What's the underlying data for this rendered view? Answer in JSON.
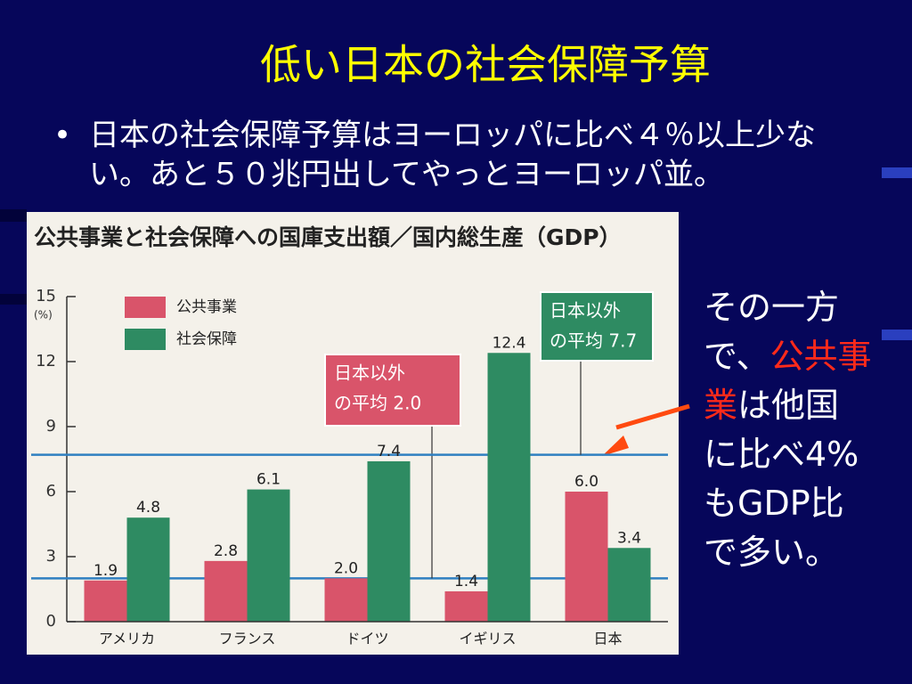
{
  "slide": {
    "title": "低い日本の社会保障予算",
    "bullet": "日本の社会保障予算はヨーロッパに比べ４％以上少ない。あと５０兆円出してやっとヨーロッパ並。",
    "side_note": [
      {
        "text": "その一方で、"
      },
      {
        "text": "公共事業",
        "color": "#ff2a1a"
      },
      {
        "text": "は他国に比べ4%もGDP比で多い。"
      }
    ]
  },
  "chart_data": {
    "type": "bar",
    "title": "公共事業と社会保障への国庫支出額／国内総生産（GDP）",
    "y_unit": "(%)",
    "categories": [
      "アメリカ",
      "フランス",
      "ドイツ",
      "イギリス",
      "日本"
    ],
    "series": [
      {
        "name": "公共事業",
        "color": "#d9546a",
        "values": [
          1.9,
          2.8,
          2.0,
          1.4,
          6.0
        ],
        "value_labels": [
          "1.9",
          "2.8",
          "2.0",
          "1.4",
          "6.0"
        ]
      },
      {
        "name": "社会保障",
        "color": "#2e8b62",
        "values": [
          4.8,
          6.1,
          7.4,
          12.4,
          3.4
        ],
        "value_labels": [
          "4.8",
          "6.1",
          "7.4",
          "12.4",
          "3.4"
        ]
      }
    ],
    "ylim": [
      0,
      15
    ],
    "yticks": [
      0,
      3,
      6,
      9,
      12,
      15
    ],
    "reference_lines": [
      {
        "value": 2.0,
        "label": [
          "日本以外",
          "の平均 2.0"
        ],
        "color": "#d9546a"
      },
      {
        "value": 7.7,
        "label": [
          "日本以外",
          "の平均 7.7"
        ],
        "color": "#2e8b62"
      }
    ]
  }
}
